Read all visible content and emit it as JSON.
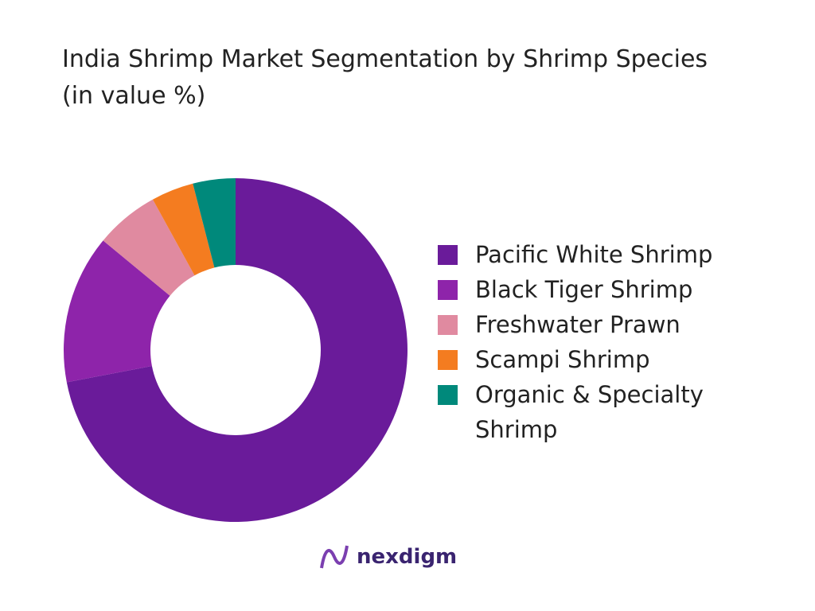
{
  "chart_data": {
    "type": "donut",
    "title": "India Shrimp Market Segmentation by Shrimp Species (in value %)",
    "categories": [
      "Pacific White Shrimp",
      "Black Tiger Shrimp",
      "Freshwater Prawn",
      "Scampi Shrimp",
      "Organic & Specialty Shrimp"
    ],
    "values": [
      72,
      14,
      6,
      4,
      4
    ],
    "colors": [
      "#6a1b9a",
      "#8e24aa",
      "#e08aa0",
      "#f47c20",
      "#00897b"
    ],
    "legend": "right"
  },
  "branding": {
    "logo": "nexdigm"
  }
}
